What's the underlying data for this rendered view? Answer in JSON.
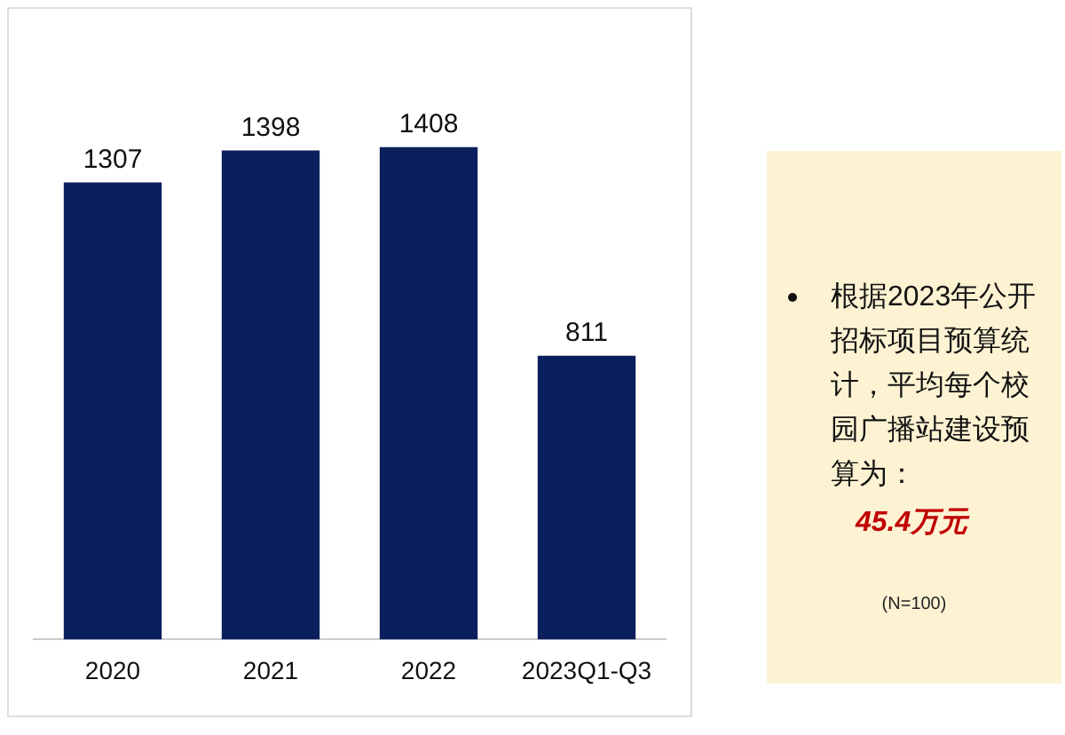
{
  "chart_data": {
    "type": "bar",
    "categories": [
      "2020",
      "2021",
      "2022",
      "2023Q1-Q3"
    ],
    "values": [
      1307,
      1398,
      1408,
      811
    ],
    "color": "#0b1f5c",
    "data_labels": true,
    "grid": false,
    "legend": false,
    "tick_labels": "x",
    "annotations": [
      "根据2023年公开招标项目预算统计，平均每个校园广播站建设预算为：",
      "45.4万元",
      "(N=100)"
    ]
  }
}
